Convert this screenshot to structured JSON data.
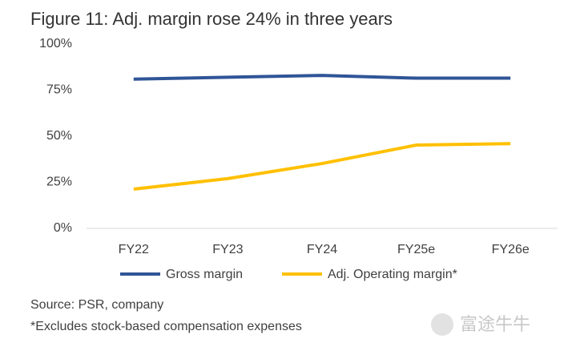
{
  "chart_data": {
    "type": "line",
    "title": "Figure 11: Adj. margin rose 24% in three years",
    "categories": [
      "FY22",
      "FY23",
      "FY24",
      "FY25e",
      "FY26e"
    ],
    "series": [
      {
        "name": "Gross margin",
        "color": "#2f5597",
        "values": [
          81,
          82,
          83,
          81.5,
          81.5
        ]
      },
      {
        "name": "Adj. Operating margin*",
        "color": "#ffc000",
        "values": [
          21.3,
          27,
          35.2,
          45.2,
          46
        ]
      }
    ],
    "ylim": [
      0,
      100
    ],
    "yticks": [
      {
        "value": 0,
        "label": "0%"
      },
      {
        "value": 25,
        "label": "25%"
      },
      {
        "value": 50,
        "label": "50%"
      },
      {
        "value": 75,
        "label": "75%"
      },
      {
        "value": 100,
        "label": "100%"
      }
    ],
    "grid": false,
    "legend": "bottom",
    "notes": [
      "Source: PSR, company",
      "*Excludes stock-based compensation expenses"
    ],
    "watermark": "富途牛牛"
  }
}
